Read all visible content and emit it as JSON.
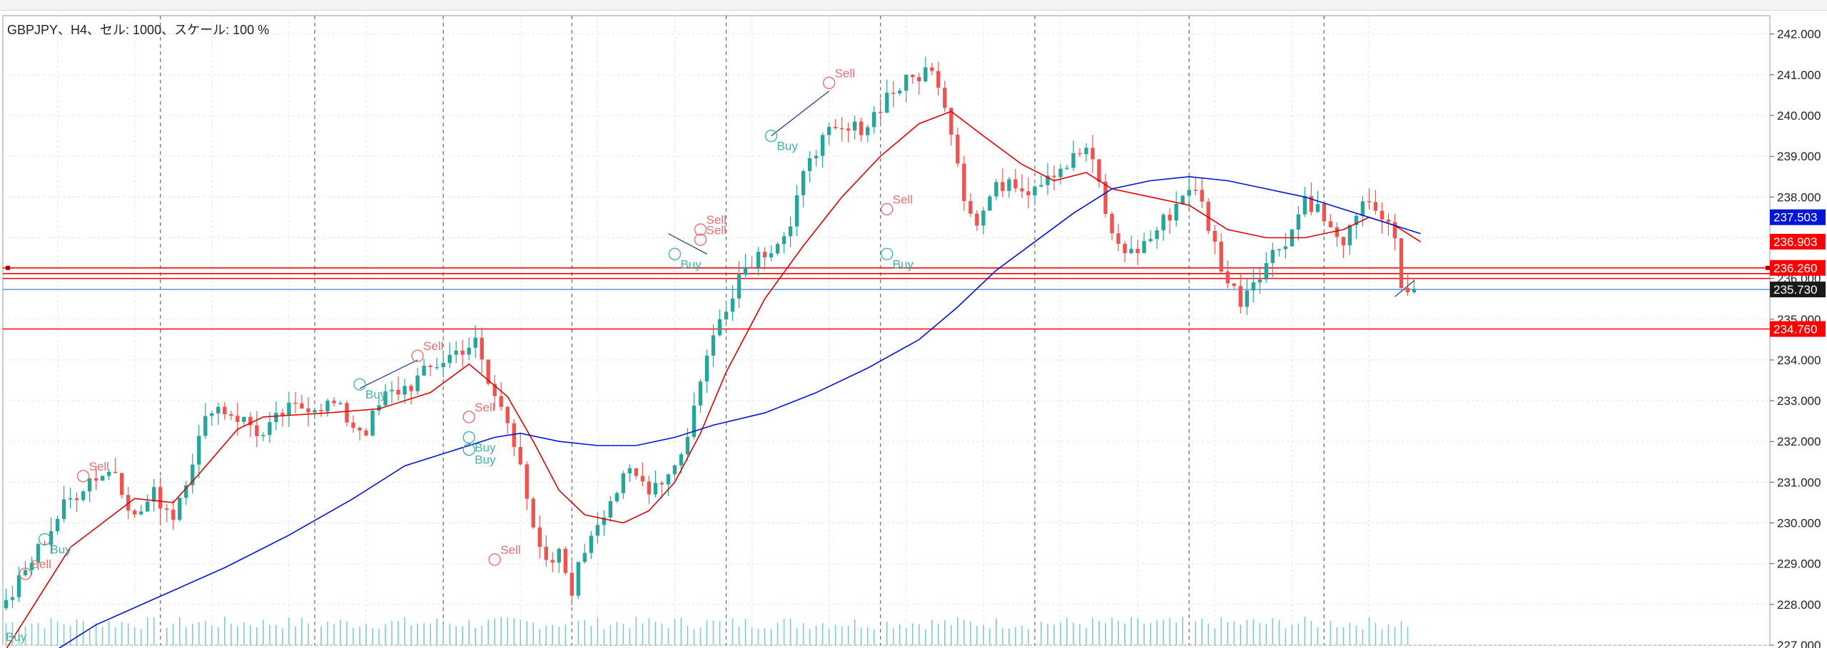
{
  "title": "GBPJPY、H4、セル: 1000、スケール: 100 %",
  "colors": {
    "bull": "#26a69a",
    "bear": "#ef5350",
    "ma_fast": "#e00000",
    "ma_slow": "#0014d8",
    "grid": "#e2e2e2",
    "session": "#666666",
    "level": "#ff0000",
    "bid": "#6f9fd8"
  },
  "chart_data": {
    "type": "candlestick",
    "symbol": "GBPJPY",
    "timeframe": "H4",
    "y_ticks": [
      "242.000",
      "241.000",
      "240.000",
      "239.000",
      "238.000",
      "237.000",
      "236.000",
      "235.000",
      "234.000",
      "233.000",
      "232.000",
      "231.000",
      "230.000",
      "229.000",
      "228.000",
      "227.000"
    ],
    "ylim": [
      227.0,
      242.45
    ],
    "bars_count": 220,
    "session_breaks_bar": [
      24,
      48,
      68,
      88,
      112,
      136,
      160,
      184,
      205
    ],
    "waypoints": [
      [
        0,
        228.0
      ],
      [
        3,
        228.8
      ],
      [
        6,
        229.6
      ],
      [
        9,
        230.4
      ],
      [
        13,
        231.1
      ],
      [
        17,
        231.3
      ],
      [
        20,
        230.1
      ],
      [
        23,
        230.7
      ],
      [
        26,
        230.2
      ],
      [
        29,
        231.6
      ],
      [
        32,
        232.9
      ],
      [
        35,
        232.7
      ],
      [
        38,
        232.4
      ],
      [
        40,
        232.1
      ],
      [
        43,
        232.7
      ],
      [
        47,
        232.9
      ],
      [
        51,
        232.9
      ],
      [
        54,
        232.4
      ],
      [
        56,
        232.3
      ],
      [
        59,
        233.1
      ],
      [
        63,
        233.4
      ],
      [
        67,
        233.9
      ],
      [
        71,
        234.3
      ],
      [
        73,
        234.4
      ],
      [
        75,
        233.4
      ],
      [
        78,
        232.5
      ],
      [
        80,
        231.6
      ],
      [
        82,
        229.7
      ],
      [
        84,
        228.9
      ],
      [
        86,
        229.2
      ],
      [
        88,
        228.4
      ],
      [
        91,
        229.8
      ],
      [
        94,
        230.6
      ],
      [
        97,
        231.2
      ],
      [
        100,
        230.9
      ],
      [
        103,
        231.2
      ],
      [
        106,
        232.1
      ],
      [
        108,
        233.6
      ],
      [
        111,
        235.0
      ],
      [
        114,
        236.1
      ],
      [
        116,
        236.5
      ],
      [
        119,
        236.8
      ],
      [
        122,
        237.2
      ],
      [
        125,
        239.1
      ],
      [
        128,
        239.5
      ],
      [
        131,
        239.6
      ],
      [
        134,
        239.8
      ],
      [
        137,
        240.5
      ],
      [
        140,
        240.8
      ],
      [
        143,
        241.1
      ],
      [
        145,
        240.9
      ],
      [
        147,
        239.7
      ],
      [
        149,
        238.1
      ],
      [
        151,
        237.3
      ],
      [
        153,
        238.0
      ],
      [
        156,
        238.5
      ],
      [
        159,
        238.2
      ],
      [
        162,
        238.6
      ],
      [
        165,
        238.8
      ],
      [
        168,
        239.2
      ],
      [
        170,
        238.3
      ],
      [
        172,
        237.0
      ],
      [
        175,
        236.6
      ],
      [
        178,
        237.0
      ],
      [
        181,
        237.6
      ],
      [
        184,
        238.3
      ],
      [
        186,
        237.8
      ],
      [
        188,
        236.8
      ],
      [
        190,
        235.9
      ],
      [
        192,
        235.5
      ],
      [
        194,
        236.0
      ],
      [
        197,
        236.6
      ],
      [
        200,
        237.2
      ],
      [
        202,
        238.0
      ],
      [
        204,
        237.7
      ],
      [
        207,
        236.9
      ],
      [
        209,
        237.1
      ],
      [
        212,
        238.0
      ],
      [
        214,
        237.5
      ],
      [
        216,
        236.9
      ],
      [
        217,
        235.6
      ],
      [
        218,
        235.7
      ],
      [
        219,
        235.8
      ]
    ],
    "series": [
      {
        "name": "",
        "color": "#e00000",
        "points": [
          [
            0,
            226.9
          ],
          [
            10,
            229.4
          ],
          [
            20,
            230.6
          ],
          [
            26,
            230.5
          ],
          [
            30,
            231.2
          ],
          [
            36,
            232.3
          ],
          [
            40,
            232.6
          ],
          [
            50,
            232.7
          ],
          [
            58,
            232.8
          ],
          [
            66,
            233.2
          ],
          [
            72,
            233.9
          ],
          [
            78,
            233.1
          ],
          [
            82,
            232.0
          ],
          [
            86,
            230.8
          ],
          [
            90,
            230.2
          ],
          [
            96,
            230.0
          ],
          [
            100,
            230.3
          ],
          [
            104,
            231.0
          ],
          [
            108,
            232.2
          ],
          [
            112,
            233.7
          ],
          [
            118,
            235.5
          ],
          [
            124,
            236.8
          ],
          [
            130,
            238.0
          ],
          [
            136,
            239.0
          ],
          [
            142,
            239.8
          ],
          [
            147,
            240.1
          ],
          [
            152,
            239.5
          ],
          [
            158,
            238.8
          ],
          [
            163,
            238.4
          ],
          [
            168,
            238.6
          ],
          [
            172,
            238.2
          ],
          [
            178,
            238.0
          ],
          [
            184,
            237.8
          ],
          [
            190,
            237.2
          ],
          [
            196,
            237.0
          ],
          [
            202,
            237.0
          ],
          [
            208,
            237.2
          ],
          [
            212,
            237.5
          ],
          [
            216,
            237.3
          ],
          [
            220,
            236.9
          ]
        ]
      },
      {
        "name": "",
        "color": "#0014d8",
        "points": [
          [
            8,
            226.9
          ],
          [
            14,
            227.5
          ],
          [
            24,
            228.2
          ],
          [
            34,
            228.9
          ],
          [
            44,
            229.7
          ],
          [
            54,
            230.6
          ],
          [
            62,
            231.4
          ],
          [
            70,
            231.8
          ],
          [
            76,
            232.1
          ],
          [
            80,
            232.2
          ],
          [
            86,
            232.0
          ],
          [
            92,
            231.9
          ],
          [
            98,
            231.9
          ],
          [
            104,
            232.1
          ],
          [
            110,
            232.4
          ],
          [
            118,
            232.7
          ],
          [
            126,
            233.2
          ],
          [
            134,
            233.8
          ],
          [
            142,
            234.5
          ],
          [
            148,
            235.3
          ],
          [
            154,
            236.2
          ],
          [
            160,
            236.9
          ],
          [
            166,
            237.6
          ],
          [
            172,
            238.2
          ],
          [
            178,
            238.4
          ],
          [
            184,
            238.5
          ],
          [
            190,
            238.4
          ],
          [
            196,
            238.2
          ],
          [
            202,
            238.0
          ],
          [
            208,
            237.7
          ],
          [
            214,
            237.4
          ],
          [
            220,
            237.1
          ]
        ]
      }
    ],
    "horizontal_levels": [
      {
        "value": "236.260",
        "color": "#ff0000"
      },
      {
        "value": "236.120",
        "color": "#ff0000"
      },
      {
        "value": "236.000",
        "color": "#ff0000"
      },
      {
        "value": "235.730",
        "color": "#6f9fd8"
      },
      {
        "value": "234.760",
        "color": "#ff0000"
      }
    ],
    "price_labels": [
      {
        "value": "237.503",
        "bg": "#0014d8",
        "fg": "#ffffff"
      },
      {
        "value": "236.903",
        "bg": "#ff0000",
        "fg": "#ffffff"
      },
      {
        "value": "236.260",
        "bg": "#ff0000",
        "fg": "#ffffff"
      },
      {
        "value": "235.730",
        "bg": "#1a1a1a",
        "fg": "#ffffff"
      },
      {
        "value": "234.760",
        "bg": "#ff0000",
        "fg": "#ffffff"
      }
    ],
    "signals": [
      {
        "text": "Sell",
        "type": "sell",
        "bar": 3,
        "y": 228.75
      },
      {
        "text": "Buy",
        "type": "buy",
        "bar": 6,
        "y": 229.6
      },
      {
        "text": "Sell",
        "type": "sell",
        "bar": 12,
        "y": 231.15
      },
      {
        "text": "Buy",
        "type": "buy",
        "bar": 55,
        "y": 233.4
      },
      {
        "text": "Sell",
        "type": "sell",
        "bar": 64,
        "y": 234.1
      },
      {
        "text": "Sell",
        "type": "sell",
        "bar": 72,
        "y": 232.6
      },
      {
        "text": "Buy",
        "type": "buy",
        "bar": 72,
        "y": 232.1
      },
      {
        "text": "Buy",
        "type": "buy",
        "bar": 72,
        "y": 231.8
      },
      {
        "text": "Sell",
        "type": "sell",
        "bar": 76,
        "y": 229.1
      },
      {
        "text": "Sell",
        "type": "sell",
        "bar": 108,
        "y": 237.2
      },
      {
        "text": "Sell",
        "type": "sell",
        "bar": 108,
        "y": 236.95
      },
      {
        "text": "Buy",
        "type": "buy",
        "bar": 104,
        "y": 236.6
      },
      {
        "text": "Buy",
        "type": "buy",
        "bar": 119,
        "y": 239.5
      },
      {
        "text": "Sell",
        "type": "sell",
        "bar": 128,
        "y": 240.8
      },
      {
        "text": "Sell",
        "type": "sell",
        "bar": 137,
        "y": 237.7
      },
      {
        "text": "Buy",
        "type": "buy",
        "bar": 137,
        "y": 236.6
      }
    ],
    "volume_bars": 219,
    "corner_label": "Buy"
  }
}
